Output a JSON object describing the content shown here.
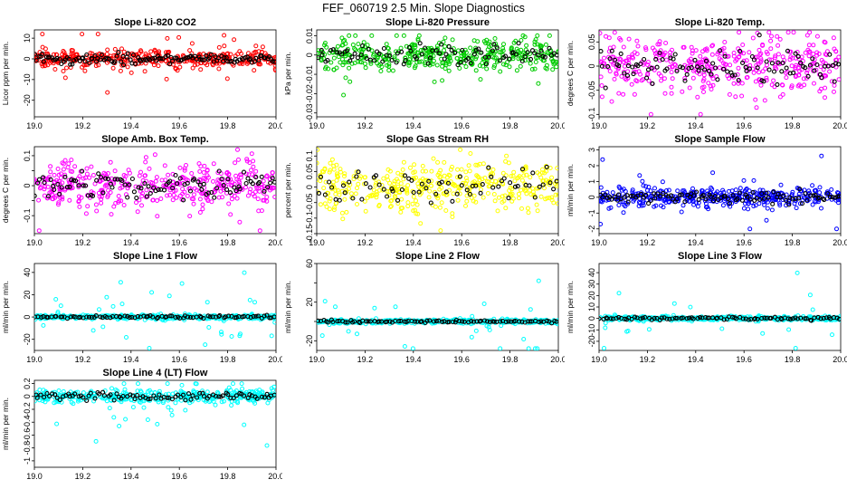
{
  "title": "FEF_060719  2.5 Min. Slope Diagnostics",
  "colors": {
    "red": "#ff0000",
    "green": "#00cc00",
    "magenta": "#ff00ff",
    "yellow": "#ffff00",
    "blue": "#0000ff",
    "cyan": "#00ffff",
    "black": "#000000"
  },
  "chart_data": [
    {
      "type": "scatter",
      "title": "Slope Li-820 CO2",
      "ylabel": "Licor ppm per min.",
      "color_key": "red",
      "xlim": [
        19.0,
        20.0
      ],
      "ylim": [
        -28,
        14
      ],
      "yticks": [
        -20,
        -10,
        0,
        10
      ],
      "xticks": [
        "19.0",
        "19.2",
        "19.4",
        "19.6",
        "19.8",
        "20.0"
      ],
      "series_summary": {
        "center": 0,
        "typical_spread": 2,
        "min": -26,
        "max": 12,
        "points_per_series": 400,
        "black_points": 130
      }
    },
    {
      "type": "scatter",
      "title": "Slope Li-820 Pressure",
      "ylabel": "kPa per min.",
      "color_key": "green",
      "xlim": [
        19.0,
        20.0
      ],
      "ylim": [
        -0.032,
        0.013
      ],
      "yticks": [
        -0.03,
        -0.02,
        -0.01,
        0.0,
        0.01
      ],
      "xticks": [
        "19.0",
        "19.2",
        "19.4",
        "19.6",
        "19.8",
        "20.0"
      ],
      "series_summary": {
        "center": 0,
        "typical_spread": 0.004,
        "min": -0.03,
        "max": 0.01,
        "points_per_series": 400,
        "black_points": 90
      }
    },
    {
      "type": "scatter",
      "title": "Slope Li-820 Temp.",
      "ylabel": "degrees C per min.",
      "color_key": "magenta",
      "xlim": [
        19.0,
        20.0
      ],
      "ylim": [
        -0.105,
        0.075
      ],
      "yticks": [
        -0.1,
        -0.05,
        0.0,
        0.05
      ],
      "xticks": [
        "19.0",
        "19.2",
        "19.4",
        "19.6",
        "19.8",
        "20.0"
      ],
      "series_summary": {
        "center": 0,
        "typical_spread": 0.03,
        "min": -0.1,
        "max": 0.07,
        "points_per_series": 400,
        "black_points": 100
      }
    },
    {
      "type": "scatter",
      "title": "Slope Amb. Box Temp.",
      "ylabel": "degrees C per min.",
      "color_key": "magenta",
      "xlim": [
        19.0,
        20.0
      ],
      "ylim": [
        -0.16,
        0.13
      ],
      "yticks": [
        -0.1,
        0.0,
        0.1
      ],
      "extra_yticks": [
        -0.05,
        0.05
      ],
      "xticks": [
        "19.0",
        "19.2",
        "19.4",
        "19.6",
        "19.8",
        "20.0"
      ],
      "series_summary": {
        "center": 0,
        "typical_spread": 0.04,
        "min": -0.15,
        "max": 0.12,
        "points_per_series": 400,
        "black_points": 100
      }
    },
    {
      "type": "scatter",
      "title": "Slope Gas Stream RH",
      "ylabel": "percent per min.",
      "color_key": "yellow",
      "xlim": [
        19.0,
        20.0
      ],
      "ylim": [
        -0.15,
        0.13
      ],
      "yticks": [
        -0.15,
        -0.1,
        -0.05,
        0.0,
        0.05,
        0.1
      ],
      "xticks": [
        "19.0",
        "19.2",
        "19.4",
        "19.6",
        "19.8",
        "20.0"
      ],
      "series_summary": {
        "center": 0,
        "typical_spread": 0.04,
        "min": -0.14,
        "max": 0.12,
        "points_per_series": 400,
        "black_points": 70
      }
    },
    {
      "type": "scatter",
      "title": "Slope Sample Flow",
      "ylabel": "ml/min per min.",
      "color_key": "blue",
      "xlim": [
        19.0,
        20.0
      ],
      "ylim": [
        -2.3,
        3.2
      ],
      "yticks": [
        -2,
        -1,
        0,
        1,
        2,
        3
      ],
      "xticks": [
        "19.0",
        "19.2",
        "19.4",
        "19.6",
        "19.8",
        "20.0"
      ],
      "series_summary": {
        "center": 0,
        "typical_spread": 0.3,
        "min": -2,
        "max": 3,
        "points_per_series": 400,
        "black_points": 100
      }
    },
    {
      "type": "scatter",
      "title": "Slope Line 1 Flow",
      "ylabel": "ml/min per min.",
      "color_key": "cyan",
      "xlim": [
        19.0,
        20.0
      ],
      "ylim": [
        -30,
        48
      ],
      "yticks": [
        -20,
        0,
        20,
        40
      ],
      "xticks": [
        "19.0",
        "19.2",
        "19.4",
        "19.6",
        "19.8",
        "20.0"
      ],
      "series_summary": {
        "center": 0,
        "typical_spread": 1,
        "min": -28,
        "max": 46,
        "points_per_series": 400,
        "black_points": 90
      }
    },
    {
      "type": "scatter",
      "title": "Slope Line 2 Flow",
      "ylabel": "ml/min per min.",
      "color_key": "cyan",
      "xlim": [
        19.0,
        20.0
      ],
      "ylim": [
        -30,
        60
      ],
      "yticks": [
        -20,
        20,
        60
      ],
      "extra_yticks": [
        0,
        40
      ],
      "xticks": [
        "19.0",
        "19.2",
        "19.4",
        "19.6",
        "19.8",
        "20.0"
      ],
      "series_summary": {
        "center": 0,
        "typical_spread": 1,
        "min": -28,
        "max": 58,
        "points_per_series": 400,
        "black_points": 90
      }
    },
    {
      "type": "scatter",
      "title": "Slope Line 3 Flow",
      "ylabel": "ml/min per min.",
      "color_key": "cyan",
      "xlim": [
        19.0,
        20.0
      ],
      "ylim": [
        -28,
        48
      ],
      "yticks": [
        -20,
        -10,
        0,
        10,
        20,
        30,
        40
      ],
      "xticks": [
        "19.0",
        "19.2",
        "19.4",
        "19.6",
        "19.8",
        "20.0"
      ],
      "series_summary": {
        "center": 0,
        "typical_spread": 1,
        "min": -26,
        "max": 46,
        "points_per_series": 400,
        "black_points": 90
      }
    },
    {
      "type": "scatter",
      "title": "Slope Line 4 (LT) Flow",
      "ylabel": "ml/min per min.",
      "color_key": "cyan",
      "xlim": [
        19.0,
        20.0
      ],
      "ylim": [
        -1.1,
        0.25
      ],
      "yticks": [
        -1.0,
        -0.8,
        -0.6,
        -0.4,
        -0.2,
        0.0,
        0.2
      ],
      "xticks": [
        "19.0",
        "19.2",
        "19.4",
        "19.6",
        "19.8",
        "20.0"
      ],
      "series_summary": {
        "center": 0,
        "typical_spread": 0.05,
        "min": -1.05,
        "max": 0.2,
        "points_per_series": 400,
        "black_points": 90
      }
    }
  ]
}
